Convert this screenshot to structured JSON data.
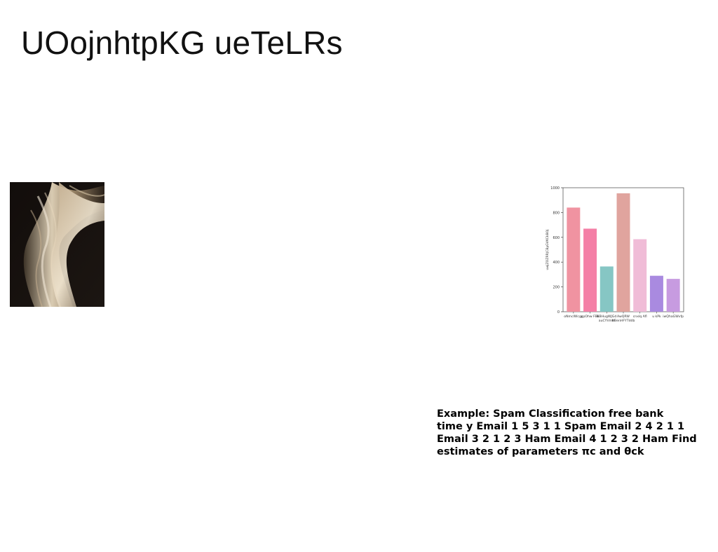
{
  "slide": {
    "title": "UOojnhtpKG ueTeLRs",
    "image": {
      "description_icon": "abstract-wave-image-icon"
    },
    "body_lines": [
      "Example: Spam Classification free bank",
      "time y Email 1 5 3 1 1 Spam Email 2 4 2 1 1",
      "Email 3 2 1 2 3 Ham Email 4 1 2 3 2 Ham Find",
      "estimates of parameters πc and θck"
    ]
  },
  "chart_data": {
    "type": "bar",
    "categories": [
      "oNmcIWcgc",
      "gpOhw FBk",
      "BBHugWJGd auCYVmtr",
      "AwQRW HBenHFYTddb",
      "cnxlq Afl",
      "u kPk",
      "iwQhaGWvfp"
    ],
    "values": [
      840,
      670,
      365,
      955,
      585,
      290,
      265
    ],
    "colors": [
      "#f093a1",
      "#f47fa6",
      "#86c6c4",
      "#e0a49e",
      "#f0bcd7",
      "#a98ae0",
      "#c79be0"
    ],
    "ylabel": "uwjZOZRRJCByGVKCkBOj",
    "ylim": [
      0,
      1000
    ],
    "yticks": [
      0,
      200,
      400,
      600,
      800,
      1000
    ]
  }
}
